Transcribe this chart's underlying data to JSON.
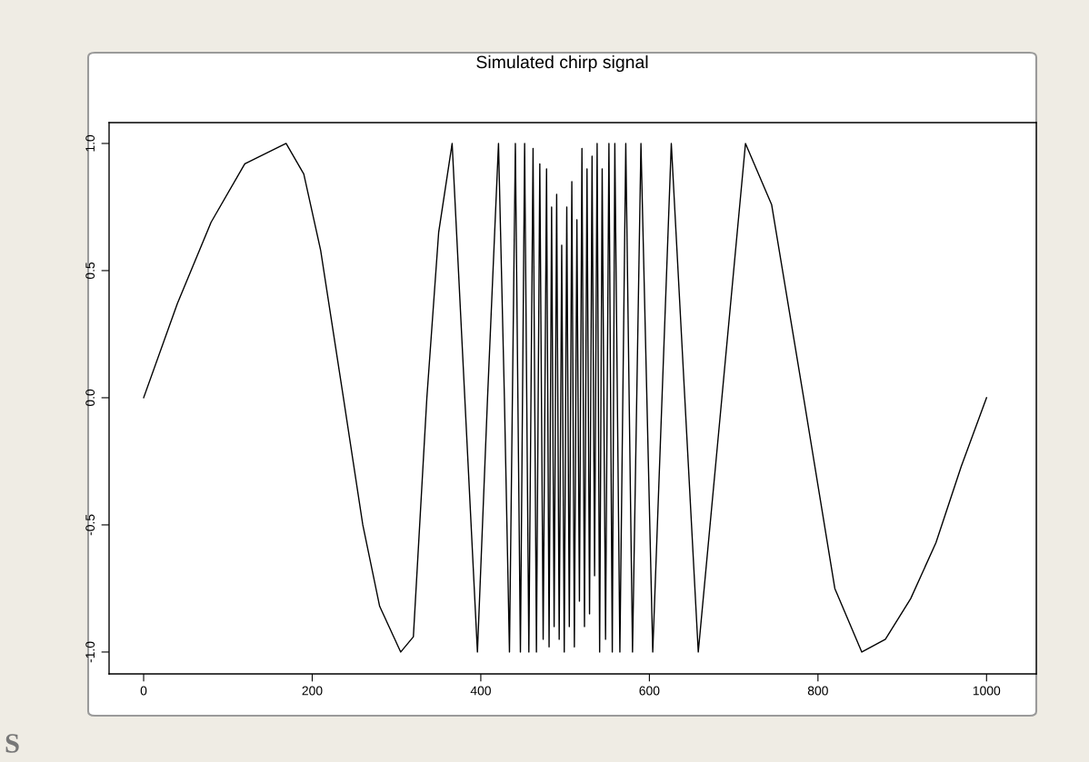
{
  "chart_data": {
    "type": "line",
    "title": "Simulated chirp signal",
    "annotations": [
      "S"
    ],
    "x": [
      0,
      40,
      80,
      120,
      169,
      190,
      210,
      237,
      260,
      280,
      305,
      320,
      336,
      350,
      366,
      381,
      396,
      408,
      421,
      428,
      434,
      441,
      447,
      452,
      457,
      462,
      466,
      470,
      474,
      478,
      481,
      484,
      487,
      490,
      493,
      496,
      499,
      502,
      505,
      508,
      511,
      514,
      517,
      520,
      523,
      526,
      529,
      532,
      535,
      538,
      541,
      544,
      548,
      552,
      556,
      559,
      565,
      572,
      580,
      590,
      604,
      615,
      626,
      642,
      658,
      686,
      714,
      745,
      783,
      820,
      852,
      880,
      910,
      940,
      970,
      1000
    ],
    "series": [
      {
        "color": "#000000",
        "values": [
          0,
          0.37,
          0.69,
          0.92,
          1,
          0.88,
          0.58,
          0,
          -0.5,
          -0.82,
          -1,
          -0.94,
          0,
          0.65,
          1,
          0,
          -1,
          0,
          1,
          0,
          -1,
          1,
          -1,
          1,
          -1,
          0.98,
          -1,
          0.92,
          -0.95,
          0.9,
          -0.98,
          0.75,
          -0.9,
          0.8,
          -0.95,
          0.6,
          -1,
          0.75,
          -0.9,
          0.85,
          -0.98,
          0.7,
          -0.8,
          0.98,
          -0.9,
          0.9,
          -0.85,
          0.95,
          -0.7,
          1,
          -1,
          0.9,
          -0.95,
          1,
          -1,
          1,
          -1,
          1,
          -1,
          1,
          -1,
          0,
          1,
          0,
          -1,
          0,
          1,
          0.76,
          0,
          -0.75,
          -1,
          -0.95,
          -0.79,
          -0.57,
          -0.27,
          0
        ]
      }
    ],
    "xlim": [
      -41,
      1059
    ],
    "ylim": [
      -1.086,
      1.082
    ],
    "xticks": [
      0,
      200,
      400,
      600,
      800,
      1000
    ],
    "yticks": [
      {
        "value": -1,
        "label": "-1.0"
      },
      -0.5,
      {
        "value": 0,
        "label": "0.0"
      },
      0.5,
      {
        "value": 1,
        "label": "1.0"
      }
    ],
    "grid": false,
    "legend": false,
    "marker": "none",
    "line_style": "solid"
  }
}
